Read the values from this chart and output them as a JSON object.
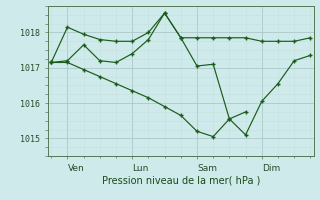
{
  "xlabel": "Pression niveau de la mer( hPa )",
  "background_color": "#ceeaea",
  "line_color": "#1a5c1a",
  "grid_major_color": "#adc8c8",
  "grid_minor_color": "#c8dede",
  "ylim": [
    1014.5,
    1018.75
  ],
  "xlim": [
    -0.2,
    16.2
  ],
  "xtick_labels": [
    "Ven",
    "Lun",
    "Sam",
    "Dim"
  ],
  "xtick_positions": [
    1,
    5,
    9,
    13
  ],
  "ytick_values": [
    1015,
    1016,
    1017,
    1018
  ],
  "series1_x": [
    0,
    1,
    2,
    3,
    4,
    5,
    6,
    7,
    8,
    9,
    10,
    11,
    12,
    13,
    14,
    15,
    16
  ],
  "series1_y": [
    1017.15,
    1018.15,
    1017.95,
    1017.8,
    1017.75,
    1017.75,
    1018.0,
    1018.55,
    1017.85,
    1017.85,
    1017.85,
    1017.85,
    1017.85,
    1017.75,
    1017.75,
    1017.75,
    1017.85
  ],
  "series2_x": [
    0,
    1,
    2,
    3,
    4,
    5,
    6,
    7,
    8,
    9,
    10,
    11,
    12,
    13,
    14,
    15,
    16
  ],
  "series2_y": [
    1017.15,
    1017.2,
    1017.65,
    1017.2,
    1017.15,
    1017.4,
    1017.8,
    1018.55,
    1017.85,
    1017.05,
    1017.1,
    1015.55,
    1015.1,
    1016.05,
    1016.55,
    1017.2,
    1017.35
  ],
  "series3_x": [
    0,
    1,
    2,
    3,
    4,
    5,
    6,
    7,
    8,
    9,
    10,
    11,
    12
  ],
  "series3_y": [
    1017.15,
    1017.15,
    1016.95,
    1016.75,
    1016.55,
    1016.35,
    1016.15,
    1015.9,
    1015.65,
    1015.2,
    1015.05,
    1015.55,
    1015.75
  ]
}
